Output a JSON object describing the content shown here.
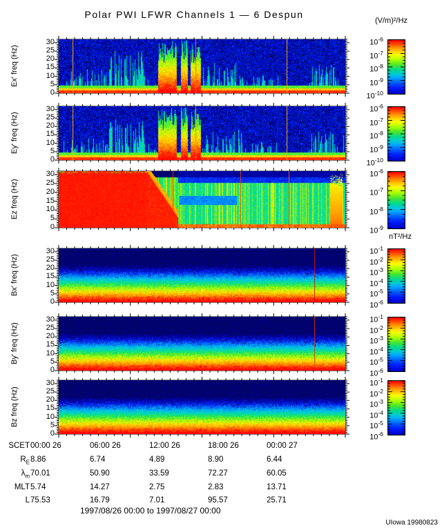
{
  "chart_data": {
    "type": "heatmap",
    "title": "Polar PWI LFWR Channels 1 — 6 Despun",
    "time_axis": {
      "label": "SCET",
      "ticks": [
        "00:00 26",
        "06:00 26",
        "12:00 26",
        "18:00 26",
        "00:00 27"
      ],
      "range_caption": "1997/08/26 00:00 to 1997/08/27 00:00"
    },
    "freq_axis": {
      "ticks": [
        0,
        5,
        10,
        15,
        20,
        25,
        30
      ],
      "lim": [
        0,
        32
      ]
    },
    "units": {
      "electric": "(V/m)²/Hz",
      "magnetic": "nT²/Hz"
    },
    "panels": [
      {
        "id": "ex",
        "ylabel": "Ex' freq (Hz)",
        "colorbar_ticks": [
          "10^-6",
          "10^-7",
          "10^-8",
          "10^-9",
          "10^-10"
        ],
        "render": {
          "style": "electric",
          "seed": 7,
          "activity": [
            [
              0.015,
              0.18,
              0.5
            ],
            [
              0.18,
              0.3,
              0.85
            ],
            [
              0.3,
              0.345,
              0.25
            ],
            [
              0.5,
              0.63,
              0.65
            ],
            [
              0.63,
              0.78,
              0.35
            ],
            [
              0.8,
              0.87,
              0.12
            ],
            [
              0.87,
              0.995,
              0.55
            ]
          ],
          "bursts": [
            [
              0.345,
              0.41
            ],
            [
              0.425,
              0.45
            ],
            [
              0.46,
              0.495
            ]
          ],
          "lines": [
            [
              0.048,
              "#ffaa00"
            ],
            [
              0.478,
              "#ff7700"
            ],
            [
              0.795,
              "#ffaa00"
            ]
          ]
        }
      },
      {
        "id": "ey",
        "ylabel": "Ey' freq (Hz)",
        "colorbar_ticks": [
          "10^-6",
          "10^-7",
          "10^-8",
          "10^-9",
          "10^-10"
        ],
        "render": {
          "style": "electric",
          "seed": 5,
          "activity": [
            [
              0.015,
              0.17,
              0.45
            ],
            [
              0.17,
              0.3,
              0.8
            ],
            [
              0.3,
              0.345,
              0.3
            ],
            [
              0.5,
              0.64,
              0.6
            ],
            [
              0.64,
              0.78,
              0.35
            ],
            [
              0.8,
              0.87,
              0.15
            ],
            [
              0.87,
              0.995,
              0.55
            ]
          ],
          "bursts": [
            [
              0.345,
              0.41
            ],
            [
              0.425,
              0.45
            ],
            [
              0.46,
              0.495
            ]
          ],
          "lines": [
            [
              0.048,
              "#ffaa00"
            ],
            [
              0.478,
              "#ff7700"
            ],
            [
              0.795,
              "#ffaa00"
            ]
          ]
        }
      },
      {
        "id": "ez",
        "ylabel": "Ez freq (Hz)",
        "colorbar_ticks": [
          "10^-6",
          "10^-7",
          "10^-8",
          "10^-9"
        ],
        "render": {
          "style": "ez",
          "seed": 4,
          "red_end": 0.306,
          "trans_end": 0.415,
          "dips": [
            [
              0.42,
              0.62,
              0.4,
              0.56
            ]
          ],
          "right_bursts": [
            [
              0.945,
              0.988
            ]
          ],
          "lines": [
            [
              0.398,
              "#ee2200"
            ],
            [
              0.634,
              "#ee4400"
            ],
            [
              0.803,
              "#ee6600"
            ]
          ]
        }
      },
      {
        "id": "bx",
        "ylabel": "Bx' freq (Hz)",
        "colorbar_ticks": [
          "10^-1",
          "10^-2",
          "10^-3",
          "10^-4",
          "10^-5",
          "10^-6"
        ],
        "render": {
          "style": "magnetic",
          "seed": 9,
          "lines": [
            [
              0.891,
              "#cc1100"
            ]
          ]
        }
      },
      {
        "id": "by",
        "ylabel": "By' freq (Hz)",
        "colorbar_ticks": [
          "10^-1",
          "10^-2",
          "10^-3",
          "10^-4",
          "10^-5",
          "10^-6"
        ],
        "render": {
          "style": "magnetic",
          "seed": 10,
          "lines": [
            [
              0.891,
              "#dd3300"
            ]
          ]
        }
      },
      {
        "id": "bz",
        "ylabel": "Bz freq (Hz)",
        "colorbar_ticks": [
          "10^-1",
          "10^-2",
          "10^-3",
          "10^-4",
          "10^-5",
          "10^-6"
        ],
        "render": {
          "style": "magnetic",
          "seed": 11,
          "lines": []
        }
      }
    ],
    "ephemeris": {
      "rows": [
        {
          "label": "SCET",
          "sub": "",
          "values": [
            "00:00 26",
            "06:00 26",
            "12:00 26",
            "18:00 26",
            "00:00 27"
          ]
        },
        {
          "label": "R",
          "sub": "E",
          "values": [
            "8.86",
            "6.74",
            "4.89",
            "8.90",
            "6.44"
          ]
        },
        {
          "label": "λ",
          "sub": "m",
          "values": [
            "70.01",
            "50.90",
            "33.59",
            "72.27",
            "60.05"
          ]
        },
        {
          "label": "MLT",
          "sub": "",
          "values": [
            "5.74",
            "14.27",
            "2.75",
            "2.83",
            "13.71"
          ]
        },
        {
          "label": "L",
          "sub": "",
          "values": [
            "75.53",
            "16.79",
            "7.01",
            "95.57",
            "25.71"
          ]
        }
      ]
    },
    "credit": "UIowa 19980823"
  }
}
